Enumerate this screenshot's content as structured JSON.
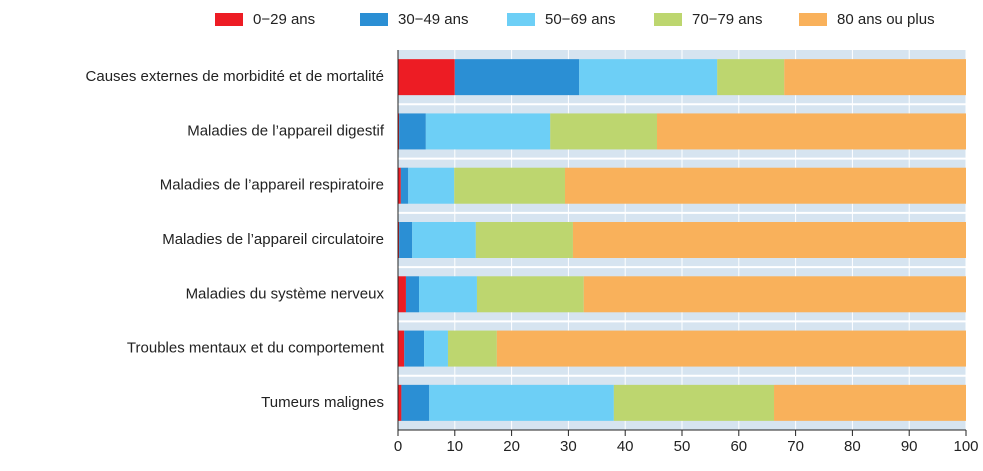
{
  "chart_data": {
    "type": "stacked-bar-horizontal",
    "categories": [
      "Causes externes de morbidité et de mortalité",
      "Maladies de l’appareil digestif",
      "Maladies de l’appareil respiratoire",
      "Maladies de l’appareil circulatoire",
      "Maladies du système nerveux",
      "Troubles mentaux et du comportement",
      "Tumeurs malignes"
    ],
    "series": [
      {
        "name": "0−29 ans",
        "color": "#ed1c24",
        "values": [
          10.0,
          0.2,
          0.5,
          0.2,
          1.4,
          1.1,
          0.6
        ]
      },
      {
        "name": "30−49 ans",
        "color": "#2b8fd4",
        "values": [
          21.9,
          4.7,
          1.3,
          2.3,
          2.3,
          3.5,
          4.9
        ]
      },
      {
        "name": "50−69 ans",
        "color": "#6dcff6",
        "values": [
          24.3,
          21.9,
          8.1,
          11.2,
          10.2,
          4.2,
          32.5
        ]
      },
      {
        "name": "70−79 ans",
        "color": "#bdd66f",
        "values": [
          11.8,
          18.8,
          19.5,
          17.1,
          18.8,
          8.6,
          28.2
        ]
      },
      {
        "name": "80 ans ou plus",
        "color": "#f9b15b",
        "values": [
          32.0,
          54.4,
          70.6,
          69.2,
          67.3,
          82.6,
          33.8
        ]
      }
    ],
    "xlim": [
      0,
      100
    ],
    "xticks": [
      0,
      10,
      20,
      30,
      40,
      50,
      60,
      70,
      80,
      90,
      100
    ],
    "grid": true
  }
}
